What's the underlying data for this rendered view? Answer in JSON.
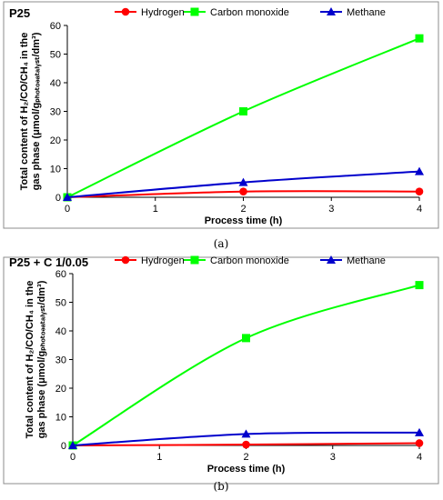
{
  "chart_data": [
    {
      "type": "line",
      "title": "P25",
      "caption": "(a)",
      "xlabel": "Process time (h)",
      "ylabel_line1": "Total content of H₂/CO/CH₄ in the",
      "ylabel_line2": "gas phase (μmol/gₚₕₒₜₒₔₐₜₐₗᵧₛₜ/dm³)",
      "xlim": [
        0,
        4
      ],
      "ylim": [
        0,
        60
      ],
      "xticks": [
        0,
        1,
        2,
        3,
        4
      ],
      "yticks": [
        0,
        10,
        20,
        30,
        40,
        50,
        60
      ],
      "legend_position": "top",
      "series": [
        {
          "name": "Hydrogen",
          "color": "#ff0000",
          "marker": "circle",
          "x": [
            0,
            2,
            4
          ],
          "y": [
            0,
            2,
            2
          ]
        },
        {
          "name": "Carbon monoxide",
          "color": "#00ff00",
          "marker": "square",
          "x": [
            0,
            2,
            4
          ],
          "y": [
            0,
            30,
            55.5
          ]
        },
        {
          "name": "Methane",
          "color": "#0000cc",
          "marker": "triangle",
          "x": [
            0,
            2,
            4
          ],
          "y": [
            0,
            5.2,
            9
          ]
        }
      ]
    },
    {
      "type": "line",
      "title": "P25 + C 1/0.05",
      "caption": "(b)",
      "xlabel": "Process time (h)",
      "ylabel_line1": "Total content of H₂/CO/CH₄ in the",
      "ylabel_line2": "gas phase (μmol/gₚₕₒₜₒₔₐₜₐₗᵧₛₜ/dm³)",
      "xlim": [
        0,
        4
      ],
      "ylim": [
        0,
        60
      ],
      "xticks": [
        0,
        1,
        2,
        3,
        4
      ],
      "yticks": [
        0,
        10,
        20,
        30,
        40,
        50,
        60
      ],
      "legend_position": "top",
      "series": [
        {
          "name": "Hydrogen",
          "color": "#ff0000",
          "marker": "circle",
          "x": [
            0,
            2,
            4
          ],
          "y": [
            0,
            0.3,
            0.8
          ]
        },
        {
          "name": "Carbon monoxide",
          "color": "#00ff00",
          "marker": "square",
          "x": [
            0,
            2,
            4
          ],
          "y": [
            0,
            37.5,
            56
          ]
        },
        {
          "name": "Methane",
          "color": "#0000cc",
          "marker": "triangle",
          "x": [
            0,
            2,
            4
          ],
          "y": [
            0,
            4,
            4.5
          ]
        }
      ]
    }
  ]
}
